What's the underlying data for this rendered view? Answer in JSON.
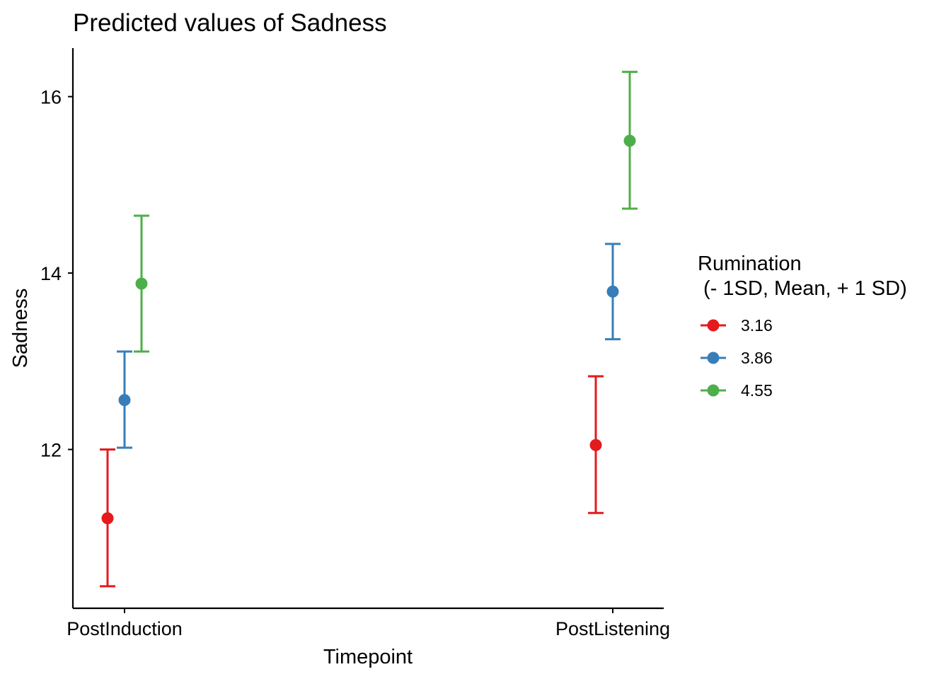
{
  "chart_data": {
    "type": "scatter",
    "title": "Predicted values of Sadness",
    "xlabel": "Timepoint",
    "ylabel": "Sadness",
    "categories": [
      "PostInduction",
      "PostListening"
    ],
    "ylim": [
      10.2,
      16.55
    ],
    "yticks": [
      12,
      14,
      16
    ],
    "grid": false,
    "error_bars": true,
    "legend": {
      "title_line1": "Rumination",
      "title_line2": " (- 1SD, Mean, + 1 SD)",
      "placement": "right"
    },
    "series": [
      {
        "name": "3.16",
        "color": "#e41a1c",
        "values": [
          11.22,
          12.05
        ],
        "lower": [
          10.45,
          11.28
        ],
        "upper": [
          12.0,
          12.83
        ]
      },
      {
        "name": "3.86",
        "color": "#377eb8",
        "values": [
          12.56,
          13.79
        ],
        "lower": [
          12.02,
          13.25
        ],
        "upper": [
          13.11,
          14.33
        ]
      },
      {
        "name": "4.55",
        "color": "#4daf4a",
        "values": [
          13.88,
          15.5
        ],
        "lower": [
          13.11,
          14.73
        ],
        "upper": [
          14.65,
          16.28
        ]
      }
    ]
  }
}
